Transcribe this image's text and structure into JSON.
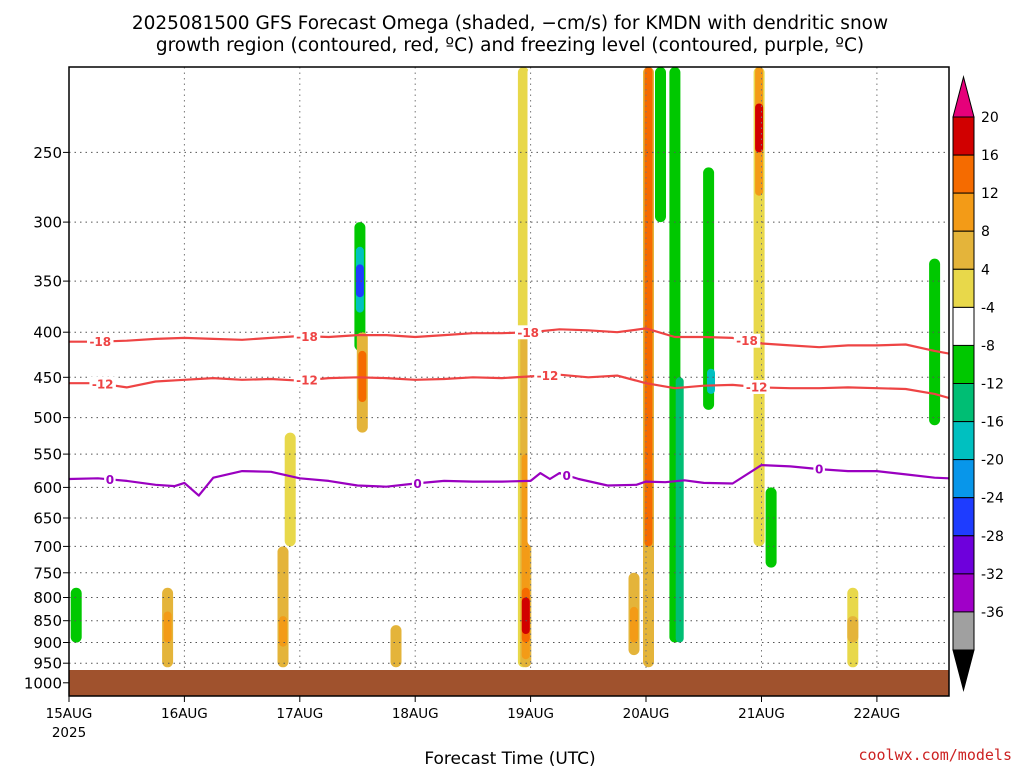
{
  "chart_data": {
    "type": "heatmap",
    "title_line1": "2025081500 GFS Forecast Omega (shaded, −cm/s) for KMDN with dendritic snow",
    "title_line2": "growth region (contoured, red, ºC) and freezing level (contoured, purple, ºC)",
    "xlabel": "Forecast Time (UTC)",
    "ylabel": "",
    "credit": "coolwx.com/models",
    "x_tick_labels": [
      "15AUG",
      "16AUG",
      "17AUG",
      "18AUG",
      "19AUG",
      "20AUG",
      "21AUG",
      "22AUG"
    ],
    "x_year_label": "2025",
    "x_tick_hours": [
      0,
      24,
      48,
      72,
      96,
      120,
      144,
      168
    ],
    "x_range_hours": [
      0,
      183
    ],
    "y_tick_levels": [
      250,
      300,
      350,
      400,
      450,
      500,
      550,
      600,
      650,
      700,
      750,
      800,
      850,
      900,
      950,
      1000
    ],
    "y_range_hpa": [
      200,
      1035
    ],
    "y_scale": "log-pressure",
    "grid": true,
    "colorbar": {
      "labels": [
        "20",
        "16",
        "12",
        "8",
        "4",
        "-4",
        "-8",
        "-12",
        "-16",
        "-20",
        "-24",
        "-28",
        "-32",
        "-36"
      ],
      "levels": [
        20,
        16,
        12,
        8,
        4,
        -4,
        -8,
        -12,
        -16,
        -20,
        -24,
        -28,
        -32,
        -36
      ],
      "colors": [
        "#d10000",
        "#f56b00",
        "#f39b17",
        "#e4b43a",
        "#e8d84a",
        "#ffffff",
        "#00c800",
        "#00be74",
        "#00c0c0",
        "#0896ea",
        "#1e3cff",
        "#6e00dc",
        "#a000c8",
        "#a0a0a0"
      ],
      "top_color": "#e6007a",
      "bottom_color": "#000000"
    },
    "colors": {
      "dgz": "#ee4444",
      "freezing": "#9a00c0",
      "ground": "#a0522d"
    },
    "contours": [
      {
        "label": "-18",
        "label_hours": [
          6.5,
          49.5,
          95.5,
          141
        ],
        "points": [
          [
            0,
            410
          ],
          [
            6,
            410
          ],
          [
            12,
            409
          ],
          [
            18,
            407
          ],
          [
            24,
            406
          ],
          [
            30,
            407
          ],
          [
            36,
            408
          ],
          [
            42,
            406
          ],
          [
            48,
            404
          ],
          [
            54,
            405
          ],
          [
            60,
            403
          ],
          [
            66,
            403
          ],
          [
            72,
            405
          ],
          [
            78,
            403
          ],
          [
            84,
            401
          ],
          [
            90,
            401
          ],
          [
            96,
            400
          ],
          [
            102,
            397
          ],
          [
            108,
            398
          ],
          [
            114,
            400
          ],
          [
            120,
            396
          ],
          [
            126,
            405
          ],
          [
            132,
            405
          ],
          [
            138,
            406
          ],
          [
            144,
            412
          ],
          [
            150,
            414
          ],
          [
            156,
            416
          ],
          [
            162,
            414
          ],
          [
            168,
            414
          ],
          [
            174,
            413
          ],
          [
            180,
            420
          ],
          [
            183,
            423
          ]
        ]
      },
      {
        "label": "-12",
        "label_hours": [
          7,
          49.5,
          99.5,
          143
        ],
        "points": [
          [
            0,
            457
          ],
          [
            6,
            457
          ],
          [
            12,
            462
          ],
          [
            18,
            455
          ],
          [
            24,
            453
          ],
          [
            30,
            451
          ],
          [
            36,
            453
          ],
          [
            42,
            452
          ],
          [
            48,
            454
          ],
          [
            54,
            451
          ],
          [
            60,
            450
          ],
          [
            66,
            451
          ],
          [
            72,
            453
          ],
          [
            78,
            452
          ],
          [
            84,
            450
          ],
          [
            90,
            451
          ],
          [
            96,
            449
          ],
          [
            102,
            447
          ],
          [
            108,
            450
          ],
          [
            114,
            448
          ],
          [
            120,
            457
          ],
          [
            126,
            463
          ],
          [
            132,
            460
          ],
          [
            138,
            459
          ],
          [
            144,
            462
          ],
          [
            150,
            463
          ],
          [
            156,
            463
          ],
          [
            162,
            462
          ],
          [
            168,
            463
          ],
          [
            174,
            464
          ],
          [
            180,
            470
          ],
          [
            183,
            475
          ]
        ]
      },
      {
        "label": "0",
        "label_hours": [
          8.5,
          72.5,
          103.5,
          156
        ],
        "points": [
          [
            0,
            587
          ],
          [
            6,
            586
          ],
          [
            12,
            590
          ],
          [
            18,
            596
          ],
          [
            22,
            598
          ],
          [
            24,
            593
          ],
          [
            27,
            613
          ],
          [
            30,
            585
          ],
          [
            36,
            575
          ],
          [
            42,
            576
          ],
          [
            48,
            586
          ],
          [
            54,
            590
          ],
          [
            60,
            597
          ],
          [
            66,
            599
          ],
          [
            72,
            594
          ],
          [
            78,
            590
          ],
          [
            84,
            591
          ],
          [
            90,
            591
          ],
          [
            96,
            590
          ],
          [
            98,
            578
          ],
          [
            100,
            587
          ],
          [
            102,
            578
          ],
          [
            106,
            587
          ],
          [
            112,
            597
          ],
          [
            118,
            596
          ],
          [
            120,
            591
          ],
          [
            124,
            592
          ],
          [
            128,
            589
          ],
          [
            132,
            593
          ],
          [
            138,
            594
          ],
          [
            144,
            566
          ],
          [
            150,
            568
          ],
          [
            156,
            572
          ],
          [
            162,
            575
          ],
          [
            168,
            575
          ],
          [
            174,
            580
          ],
          [
            180,
            585
          ],
          [
            183,
            586
          ]
        ]
      }
    ],
    "omega_blobs": [
      {
        "hour": 1.5,
        "p_top": 780,
        "p_bot": 900,
        "value": -8
      },
      {
        "hour": 20.5,
        "p_top": 780,
        "p_bot": 960,
        "value": 8
      },
      {
        "hour": 20.5,
        "p_top": 830,
        "p_bot": 900,
        "value": 12
      },
      {
        "hour": 44.5,
        "p_top": 700,
        "p_bot": 960,
        "value": 8
      },
      {
        "hour": 44.5,
        "p_top": 840,
        "p_bot": 910,
        "value": 12
      },
      {
        "hour": 46,
        "p_top": 520,
        "p_bot": 700,
        "value": 4
      },
      {
        "hour": 60,
        "p_top": 300,
        "p_bot": 600,
        "value": -4
      },
      {
        "hour": 60.5,
        "p_top": 300,
        "p_bot": 420,
        "value": -8
      },
      {
        "hour": 60.5,
        "p_top": 320,
        "p_bot": 380,
        "value": -16
      },
      {
        "hour": 60.5,
        "p_top": 335,
        "p_bot": 365,
        "value": -24
      },
      {
        "hour": 61,
        "p_top": 400,
        "p_bot": 520,
        "value": 8
      },
      {
        "hour": 61,
        "p_top": 420,
        "p_bot": 480,
        "value": 16
      },
      {
        "hour": 68,
        "p_top": 860,
        "p_bot": 960,
        "value": 8
      },
      {
        "hour": 94.5,
        "p_top": 200,
        "p_bot": 960,
        "value": 4
      },
      {
        "hour": 95,
        "p_top": 400,
        "p_bot": 960,
        "value": 8
      },
      {
        "hour": 95,
        "p_top": 550,
        "p_bot": 940,
        "value": 12
      },
      {
        "hour": 95,
        "p_top": 780,
        "p_bot": 900,
        "value": 16
      },
      {
        "hour": 95,
        "p_top": 800,
        "p_bot": 880,
        "value": 20
      },
      {
        "hour": 96.5,
        "p_top": 200,
        "p_bot": 700,
        "value": -4
      },
      {
        "hour": 117.5,
        "p_top": 750,
        "p_bot": 930,
        "value": 8
      },
      {
        "hour": 117.5,
        "p_top": 820,
        "p_bot": 900,
        "value": 12
      },
      {
        "hour": 120.5,
        "p_top": 200,
        "p_bot": 960,
        "value": 8
      },
      {
        "hour": 120.5,
        "p_top": 200,
        "p_bot": 700,
        "value": 16
      },
      {
        "hour": 123,
        "p_top": 200,
        "p_bot": 300,
        "value": -8
      },
      {
        "hour": 126,
        "p_top": 200,
        "p_bot": 900,
        "value": -8
      },
      {
        "hour": 127,
        "p_top": 450,
        "p_bot": 900,
        "value": -12
      },
      {
        "hour": 133,
        "p_top": 260,
        "p_bot": 490,
        "value": -8
      },
      {
        "hour": 133.5,
        "p_top": 440,
        "p_bot": 470,
        "value": -16
      },
      {
        "hour": 143.5,
        "p_top": 200,
        "p_bot": 700,
        "value": 4
      },
      {
        "hour": 143.5,
        "p_top": 200,
        "p_bot": 280,
        "value": 12
      },
      {
        "hour": 143.5,
        "p_top": 220,
        "p_bot": 250,
        "value": 20
      },
      {
        "hour": 146,
        "p_top": 600,
        "p_bot": 740,
        "value": -8
      },
      {
        "hour": 163,
        "p_top": 780,
        "p_bot": 960,
        "value": 4
      },
      {
        "hour": 163,
        "p_top": 840,
        "p_bot": 900,
        "value": 8
      },
      {
        "hour": 180,
        "p_top": 330,
        "p_bot": 510,
        "value": -8
      }
    ]
  }
}
